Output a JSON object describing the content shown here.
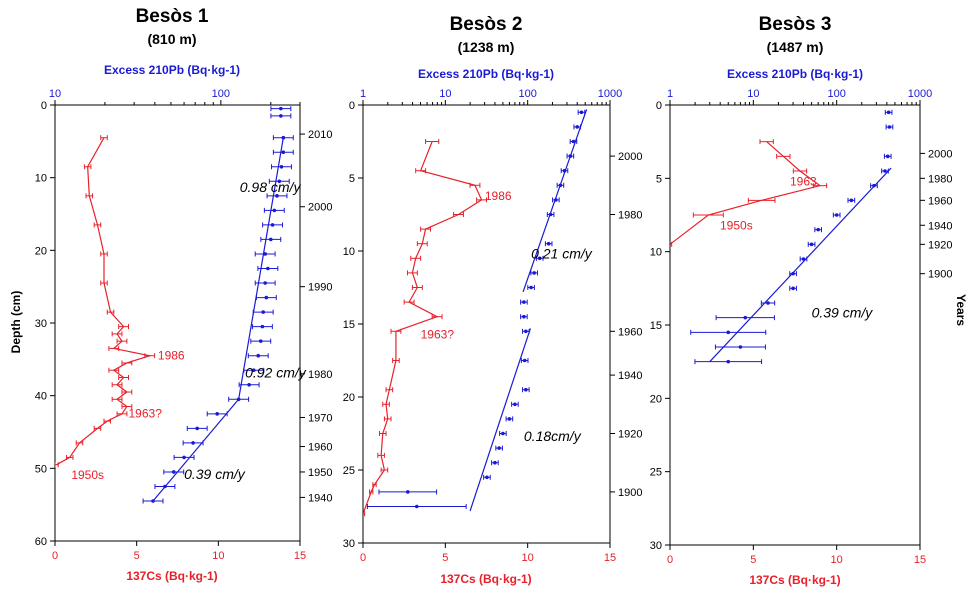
{
  "colors": {
    "cs": "#e8202a",
    "pb": "#1a1ad6",
    "axis": "#000000"
  },
  "chart_data": [
    {
      "type": "scatter",
      "title": "Besòs 1",
      "subtitle": "(810 m)",
      "top_axis_label": "Excess 210Pb (Bq·kg-1)",
      "bottom_axis_label": "137Cs (Bq·kg-1)",
      "left_axis_label": "Depth (cm)",
      "right_axis_label": "",
      "ylim": [
        0,
        60
      ],
      "y_ticks": [
        0,
        10,
        20,
        30,
        40,
        50,
        60
      ],
      "cs_xlim": [
        0,
        15
      ],
      "cs_ticks": [
        0,
        5,
        10,
        15
      ],
      "pb_log_ticks": [
        "10",
        "100"
      ],
      "years_axis": [
        {
          "depth": 4,
          "label": "2010"
        },
        {
          "depth": 14,
          "label": "2000"
        },
        {
          "depth": 25,
          "label": "1990"
        },
        {
          "depth": 37,
          "label": "1980"
        },
        {
          "depth": 43,
          "label": "1970"
        },
        {
          "depth": 47,
          "label": "1960"
        },
        {
          "depth": 50.5,
          "label": "1950"
        },
        {
          "depth": 54,
          "label": "1940"
        }
      ],
      "series": [
        {
          "name": "137Cs",
          "points": [
            {
              "x": 3.0,
              "y": 4.5
            },
            {
              "x": 2.0,
              "y": 8.5
            },
            {
              "x": 2.1,
              "y": 12.5
            },
            {
              "x": 2.6,
              "y": 16.5
            },
            {
              "x": 3.0,
              "y": 20.5
            },
            {
              "x": 3.0,
              "y": 24.5
            },
            {
              "x": 3.4,
              "y": 28.5
            },
            {
              "x": 4.2,
              "y": 30.5
            },
            {
              "x": 3.8,
              "y": 31.5
            },
            {
              "x": 4.1,
              "y": 32.5
            },
            {
              "x": 3.6,
              "y": 33.5
            },
            {
              "x": 5.8,
              "y": 34.5
            },
            {
              "x": 4.4,
              "y": 35.5
            },
            {
              "x": 3.6,
              "y": 36.5
            },
            {
              "x": 4.2,
              "y": 37.5
            },
            {
              "x": 3.8,
              "y": 38.5
            },
            {
              "x": 4.4,
              "y": 39.5
            },
            {
              "x": 3.8,
              "y": 40.5
            },
            {
              "x": 4.4,
              "y": 41.5
            },
            {
              "x": 4.1,
              "y": 42.5
            },
            {
              "x": 3.2,
              "y": 43.5
            },
            {
              "x": 2.6,
              "y": 44.5
            },
            {
              "x": 1.5,
              "y": 46.5
            },
            {
              "x": 0.9,
              "y": 48.5
            },
            {
              "x": 0.1,
              "y": 49.5
            }
          ],
          "xerr": [
            0.2,
            0.2,
            0.2,
            0.2,
            0.2,
            0.2,
            0.2,
            0.3,
            0.3,
            0.3,
            0.3,
            0.3,
            0.3,
            0.3,
            0.3,
            0.3,
            0.3,
            0.3,
            0.3,
            0.3,
            0.2,
            0.2,
            0.2,
            0.2,
            0.1
          ]
        },
        {
          "name": "Excess 210Pb",
          "log_x": true,
          "xlim": [
            10,
            300
          ],
          "points": [
            {
              "x": 230,
              "y": 0.5
            },
            {
              "x": 230,
              "y": 1.5
            },
            {
              "x": 238,
              "y": 4.5
            },
            {
              "x": 238,
              "y": 6.5
            },
            {
              "x": 232,
              "y": 8.5
            },
            {
              "x": 225,
              "y": 10.5
            },
            {
              "x": 218,
              "y": 12.5
            },
            {
              "x": 210,
              "y": 14.5
            },
            {
              "x": 205,
              "y": 16.5
            },
            {
              "x": 200,
              "y": 18.5
            },
            {
              "x": 185,
              "y": 20.5
            },
            {
              "x": 192,
              "y": 22.5
            },
            {
              "x": 185,
              "y": 24.5
            },
            {
              "x": 188,
              "y": 26.5
            },
            {
              "x": 180,
              "y": 28.5
            },
            {
              "x": 178,
              "y": 30.5
            },
            {
              "x": 174,
              "y": 32.5
            },
            {
              "x": 168,
              "y": 34.5
            },
            {
              "x": 158,
              "y": 36.5
            },
            {
              "x": 148,
              "y": 38.5
            },
            {
              "x": 128,
              "y": 40.5
            },
            {
              "x": 95,
              "y": 42.5
            },
            {
              "x": 72,
              "y": 44.5
            },
            {
              "x": 68,
              "y": 46.5
            },
            {
              "x": 60,
              "y": 48.5
            },
            {
              "x": 52,
              "y": 50.5
            },
            {
              "x": 46,
              "y": 52.5
            },
            {
              "x": 39,
              "y": 54.5
            }
          ],
          "xerr_log": 0.06
        }
      ],
      "fit_lines": [
        {
          "x": [
            238,
            128
          ],
          "y": [
            4.5,
            40.5
          ],
          "label": "0.98 cm/y"
        },
        {
          "x": [
            128,
            39
          ],
          "y": [
            40.5,
            54.5
          ],
          "label": "0.39 cm/y"
        }
      ],
      "rate_labels": [
        {
          "text": "0.98 cm/y",
          "x": 130,
          "y": 12
        },
        {
          "text": "0.92 cm/y",
          "x": 140,
          "y": 37.5
        },
        {
          "text": "0.39 cm/y",
          "x": 60,
          "y": 51.5
        }
      ],
      "annotations": [
        {
          "text": "1986",
          "x": 6.3,
          "y": 35
        },
        {
          "text": "1963?",
          "x": 4.5,
          "y": 43
        },
        {
          "text": "1950s",
          "x": 1.0,
          "y": 51.5
        }
      ]
    },
    {
      "type": "scatter",
      "title": "Besòs 2",
      "subtitle": "(1238 m)",
      "top_axis_label": "Excess 210Pb (Bq·kg-1)",
      "bottom_axis_label": "137Cs (Bq·kg-1)",
      "left_axis_label": "",
      "right_axis_label": "",
      "ylim": [
        0,
        30
      ],
      "y_ticks": [
        0,
        5,
        10,
        15,
        20,
        25,
        30
      ],
      "cs_xlim": [
        0,
        15
      ],
      "cs_ticks": [
        0,
        5,
        10,
        15
      ],
      "pb_log_ticks": [
        "1",
        "10",
        "100",
        "1000"
      ],
      "years_axis": [
        {
          "depth": 3.5,
          "label": "2000"
        },
        {
          "depth": 7.5,
          "label": "1980"
        },
        {
          "depth": 15.5,
          "label": "1960"
        },
        {
          "depth": 18.5,
          "label": "1940"
        },
        {
          "depth": 22.5,
          "label": "1920"
        },
        {
          "depth": 26.5,
          "label": "1900"
        }
      ],
      "series": [
        {
          "name": "137Cs",
          "points": [
            {
              "x": 4.2,
              "y": 2.5
            },
            {
              "x": 3.5,
              "y": 4.5
            },
            {
              "x": 6.8,
              "y": 5.5
            },
            {
              "x": 7.2,
              "y": 6.5
            },
            {
              "x": 5.8,
              "y": 7.5
            },
            {
              "x": 3.8,
              "y": 8.5
            },
            {
              "x": 3.6,
              "y": 9.5
            },
            {
              "x": 3.2,
              "y": 10.5
            },
            {
              "x": 3.0,
              "y": 11.5
            },
            {
              "x": 3.3,
              "y": 12.5
            },
            {
              "x": 2.8,
              "y": 13.5
            },
            {
              "x": 4.5,
              "y": 14.5
            },
            {
              "x": 2.0,
              "y": 15.5
            },
            {
              "x": 2.0,
              "y": 17.5
            },
            {
              "x": 1.6,
              "y": 19.5
            },
            {
              "x": 1.4,
              "y": 20.5
            },
            {
              "x": 1.5,
              "y": 21.5
            },
            {
              "x": 1.2,
              "y": 22.5
            },
            {
              "x": 1.1,
              "y": 24.0
            },
            {
              "x": 1.3,
              "y": 25.0
            },
            {
              "x": 0.7,
              "y": 26.0
            },
            {
              "x": 0.5,
              "y": 26.5
            },
            {
              "x": 0.0,
              "y": 28.0
            }
          ],
          "xerr": [
            0.4,
            0.3,
            0.3,
            0.3,
            0.3,
            0.3,
            0.3,
            0.3,
            0.3,
            0.3,
            0.3,
            0.3,
            0.3,
            0.2,
            0.2,
            0.2,
            0.2,
            0.2,
            0.2,
            0.2,
            0.1,
            0.1,
            0.1
          ]
        },
        {
          "name": "Excess 210Pb",
          "log_x": true,
          "xlim": [
            1,
            1000
          ],
          "points": [
            {
              "x": 450,
              "y": 0.5
            },
            {
              "x": 400,
              "y": 1.5
            },
            {
              "x": 360,
              "y": 2.5
            },
            {
              "x": 330,
              "y": 3.5
            },
            {
              "x": 280,
              "y": 4.5
            },
            {
              "x": 250,
              "y": 5.5
            },
            {
              "x": 220,
              "y": 6.5
            },
            {
              "x": 190,
              "y": 7.5
            },
            {
              "x": 180,
              "y": 9.5
            },
            {
              "x": 140,
              "y": 10.5
            },
            {
              "x": 120,
              "y": 11.5
            },
            {
              "x": 110,
              "y": 12.5
            },
            {
              "x": 90,
              "y": 13.5
            },
            {
              "x": 90,
              "y": 14.5
            },
            {
              "x": 95,
              "y": 15.5
            },
            {
              "x": 92,
              "y": 17.5
            },
            {
              "x": 95,
              "y": 19.5
            },
            {
              "x": 70,
              "y": 20.5
            },
            {
              "x": 60,
              "y": 21.5
            },
            {
              "x": 50,
              "y": 22.5
            },
            {
              "x": 45,
              "y": 23.5
            },
            {
              "x": 40,
              "y": 24.5
            },
            {
              "x": 32,
              "y": 25.5
            },
            {
              "x": 3.5,
              "y": 26.5
            },
            {
              "x": 4.5,
              "y": 27.5
            }
          ],
          "xerr_log": [
            0.04,
            0.04,
            0.04,
            0.04,
            0.04,
            0.04,
            0.04,
            0.04,
            0.04,
            0.04,
            0.04,
            0.04,
            0.04,
            0.04,
            0.04,
            0.04,
            0.04,
            0.04,
            0.04,
            0.04,
            0.04,
            0.04,
            0.04,
            0.35,
            0.6
          ]
        }
      ],
      "fit_lines": [
        {
          "x": [
            520,
            88
          ],
          "y": [
            0.3,
            12.8
          ],
          "label": "0.21 cm/y"
        },
        {
          "x": [
            108,
            20
          ],
          "y": [
            15.3,
            27.8
          ],
          "label": "0.18cm/y"
        }
      ],
      "rate_labels": [
        {
          "text": "0.21 cm/y",
          "x": 110,
          "y": 10.5
        },
        {
          "text": "0.18cm/y",
          "x": 90,
          "y": 23
        }
      ],
      "annotations": [
        {
          "text": "1986",
          "x": 7.4,
          "y": 6.5
        },
        {
          "text": "1963?",
          "x": 3.5,
          "y": 16
        }
      ]
    },
    {
      "type": "scatter",
      "title": "Besòs 3",
      "subtitle": "(1487 m)",
      "top_axis_label": "Excess 210Pb (Bq·kg-1)",
      "bottom_axis_label": "137Cs (Bq·kg-1)",
      "left_axis_label": "",
      "right_axis_label": "Years",
      "ylim": [
        0,
        30
      ],
      "y_ticks": [
        0,
        5,
        10,
        15,
        20,
        25,
        30
      ],
      "cs_xlim": [
        0,
        15
      ],
      "cs_ticks": [
        0,
        5,
        10,
        15
      ],
      "pb_log_ticks": [
        "1",
        "10",
        "100",
        "1000"
      ],
      "years_axis": [
        {
          "depth": 3.3,
          "label": "2000"
        },
        {
          "depth": 5.0,
          "label": "1980"
        },
        {
          "depth": 6.5,
          "label": "1960"
        },
        {
          "depth": 8.2,
          "label": "1940"
        },
        {
          "depth": 9.5,
          "label": "1920"
        },
        {
          "depth": 11.5,
          "label": "1900"
        }
      ],
      "series": [
        {
          "name": "137Cs",
          "points": [
            {
              "x": 5.8,
              "y": 2.5
            },
            {
              "x": 6.8,
              "y": 3.5
            },
            {
              "x": 7.8,
              "y": 4.5
            },
            {
              "x": 9.0,
              "y": 5.5
            },
            {
              "x": 5.5,
              "y": 6.5
            },
            {
              "x": 2.3,
              "y": 7.5
            },
            {
              "x": 0.0,
              "y": 9.5
            }
          ],
          "xerr": [
            0.4,
            0.4,
            0.4,
            0.4,
            0.8,
            0.9,
            0.1
          ]
        },
        {
          "name": "Excess 210Pb",
          "log_x": true,
          "xlim": [
            1,
            1000
          ],
          "points": [
            {
              "x": 420,
              "y": 0.5
            },
            {
              "x": 430,
              "y": 1.5
            },
            {
              "x": 410,
              "y": 3.5
            },
            {
              "x": 380,
              "y": 4.5
            },
            {
              "x": 280,
              "y": 5.5
            },
            {
              "x": 150,
              "y": 6.5
            },
            {
              "x": 100,
              "y": 7.5
            },
            {
              "x": 60,
              "y": 8.5
            },
            {
              "x": 50,
              "y": 9.5
            },
            {
              "x": 40,
              "y": 10.5
            },
            {
              "x": 30,
              "y": 11.5
            },
            {
              "x": 30,
              "y": 12.5
            },
            {
              "x": 15,
              "y": 13.5
            },
            {
              "x": 8,
              "y": 14.5
            },
            {
              "x": 5,
              "y": 15.5
            },
            {
              "x": 7,
              "y": 16.5
            },
            {
              "x": 5,
              "y": 17.5
            }
          ],
          "xerr_log": [
            0.04,
            0.04,
            0.04,
            0.04,
            0.04,
            0.04,
            0.04,
            0.04,
            0.04,
            0.04,
            0.04,
            0.04,
            0.08,
            0.35,
            0.45,
            0.3,
            0.4
          ]
        }
      ],
      "fit_lines": [
        {
          "x": [
            450,
            3
          ],
          "y": [
            4.3,
            17.5
          ],
          "label": "0.39 cm/y"
        }
      ],
      "rate_labels": [
        {
          "text": "0.39 cm/y",
          "x": 50,
          "y": 14.5
        }
      ],
      "annotations": [
        {
          "text": "1963",
          "x": 7.2,
          "y": 5.5
        },
        {
          "text": "1950s",
          "x": 3.0,
          "y": 8.5
        }
      ]
    }
  ]
}
